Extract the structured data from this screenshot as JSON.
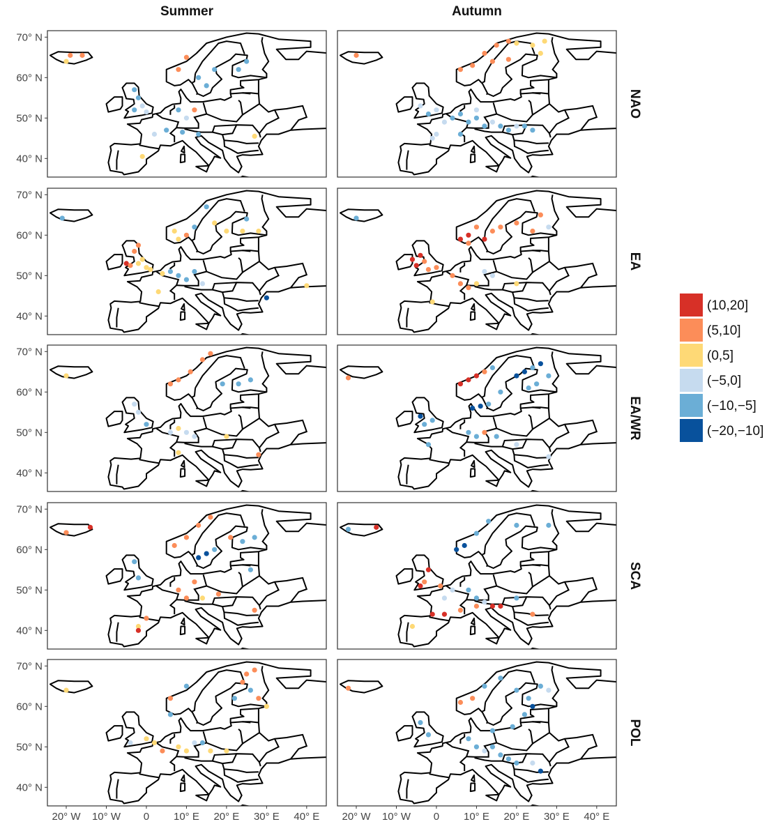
{
  "chart_data": {
    "type": "scatter",
    "columns": [
      "Summer",
      "Autumn"
    ],
    "rows": [
      "NAO",
      "EA",
      "EA/WR",
      "SCA",
      "POL"
    ],
    "xlim": [
      -24.7,
      44.9
    ],
    "xticks": [
      {
        "value": -20,
        "label": "20° W"
      },
      {
        "value": -10,
        "label": "10° W"
      },
      0,
      {
        "value": 10,
        "label": "10° E"
      },
      {
        "value": 20,
        "label": "20° E"
      },
      {
        "value": 30,
        "label": "30° E"
      },
      {
        "value": 40,
        "label": "40° E"
      }
    ],
    "ylim": [
      35.4,
      71.6
    ],
    "yticks": [
      {
        "value": 40,
        "label": "40° N"
      },
      {
        "value": 50,
        "label": "50° N"
      },
      {
        "value": 60,
        "label": "60° N"
      },
      {
        "value": 70,
        "label": "70° N"
      }
    ],
    "legend": {
      "labels": [
        "(10,20]",
        "(5,10]",
        "(0,5]",
        "(−5,0]",
        "(−10,−5]",
        "(−20,−10]"
      ],
      "colors": [
        "#d73027",
        "#fc8d59",
        "#fed976",
        "#c6dbef",
        "#6baed6",
        "#08519c"
      ]
    },
    "panels": [
      {
        "x": [
          -20,
          -19,
          -16,
          -3,
          -2,
          -1,
          -3,
          0,
          8,
          10,
          13,
          15,
          17,
          23,
          25,
          8,
          10,
          12,
          2,
          5,
          9,
          13,
          -1,
          27
        ],
        "y": [
          64,
          65.5,
          65.5,
          57,
          55,
          53,
          52,
          51.5,
          62,
          65,
          60,
          58,
          62,
          62,
          64,
          52,
          50,
          52,
          46,
          47,
          46.5,
          46,
          40.5,
          45.5
        ],
        "class": [
          "(0,5]",
          "(5,10]",
          "(5,10]",
          "(−10,−5]",
          "(−10,−5]",
          "(−5,0]",
          "(−10,−5]",
          "(−5,0]",
          "(5,10]",
          "(5,10]",
          "(−10,−5]",
          "(−10,−5]",
          "(−10,−5]",
          "(−10,−5]",
          "(−10,−5]",
          "(−10,−5]",
          "(−5,0]",
          "(5,10]",
          "(−5,0]",
          "(−10,−5]",
          "(−10,−5]",
          "(−10,−5]",
          "(0,5]",
          "(0,5]"
        ]
      },
      {
        "x": [
          -20,
          6,
          9,
          12,
          15,
          18,
          20,
          24,
          27,
          26,
          14,
          18,
          -4,
          -2,
          0,
          2,
          4,
          6,
          8,
          10,
          12,
          14,
          16,
          18,
          20,
          22,
          24,
          10,
          6,
          0,
          -1
        ],
        "y": [
          65.5,
          62,
          63,
          66,
          68,
          69,
          68.5,
          68,
          69,
          66,
          64,
          64.5,
          53,
          51,
          52,
          49,
          50,
          51,
          49,
          50,
          48,
          49,
          48,
          47,
          48,
          48,
          47,
          52,
          46,
          46,
          45
        ],
        "class": [
          "(5,10]",
          "(5,10]",
          "(5,10]",
          "(5,10]",
          "(5,10]",
          "(5,10]",
          "(0,5]",
          "(0,5]",
          "(0,5]",
          "(0,5]",
          "(5,10]",
          "(5,10]",
          "(−5,0]",
          "(−10,−5]",
          "(−5,0]",
          "(−5,0]",
          "(−10,−5]",
          "(−10,−5]",
          "(−10,−5]",
          "(−10,−5]",
          "(−10,−5]",
          "(−5,0]",
          "(−10,−5]",
          "(−10,−5]",
          "(−5,0]",
          "(−10,−5]",
          "(−10,−5]",
          "(−5,0]",
          "(−10,−5]",
          "(−5,0]",
          "(−5,0]"
        ]
      },
      {
        "x": [
          -21,
          -5,
          -4,
          -2,
          0,
          1,
          -1,
          -3,
          -2,
          7,
          8,
          10,
          12,
          15,
          17,
          20,
          24,
          28,
          25,
          4,
          6,
          8,
          10,
          12,
          14,
          3,
          40,
          30
        ],
        "y": [
          64.2,
          53,
          52.5,
          53,
          52,
          51.5,
          54,
          56,
          57.5,
          61,
          59,
          60,
          62,
          67,
          63,
          61,
          61,
          61,
          64,
          50.5,
          51,
          50,
          49,
          51,
          48,
          46,
          47.5,
          44.5
        ],
        "class": [
          "(−10,−5]",
          "(10,20]",
          "(5,10]",
          "(0,5]",
          "(0,5]",
          "(0,5]",
          "(0,5]",
          "(5,10]",
          "(5,10]",
          "(0,5]",
          "(0,5]",
          "(5,10]",
          "(−10,−5]",
          "(−10,−5]",
          "(0,5]",
          "(0,5]",
          "(0,5]",
          "(0,5]",
          "(−10,−5]",
          "(0,5]",
          "(−10,−5]",
          "(−10,−5]",
          "(−10,−5]",
          "(−10,−5]",
          "(−5,0]",
          "(0,5]",
          "(0,5]",
          "(−20,−10]"
        ]
      },
      {
        "x": [
          -20,
          -4,
          -5,
          -3,
          -2,
          0,
          -6,
          6,
          8,
          10,
          12,
          14,
          8,
          16,
          20,
          24,
          26,
          28,
          4,
          6,
          8,
          10,
          12,
          -1,
          14,
          20
        ],
        "y": [
          64.2,
          55,
          52.5,
          53.5,
          51.5,
          52,
          54,
          59,
          60,
          62,
          59,
          61,
          58,
          62,
          63,
          61,
          65,
          62,
          50,
          48,
          47,
          48,
          51,
          43.5,
          50,
          48
        ],
        "class": [
          "(−10,−5]",
          "(10,20]",
          "(10,20]",
          "(5,10]",
          "(5,10]",
          "(5,10]",
          "(10,20]",
          "(10,20]",
          "(10,20]",
          "(5,10]",
          "(10,20]",
          "(5,10]",
          "(5,10]",
          "(5,10]",
          "(5,10]",
          "(5,10]",
          "(5,10]",
          "(−5,0]",
          "(5,10]",
          "(5,10]",
          "(5,10]",
          "(0,5]",
          "(−5,0]",
          "(0,5]",
          "(−5,0]",
          "(0,5]"
        ]
      },
      {
        "x": [
          -20,
          6,
          8,
          11,
          14,
          16,
          19,
          23,
          26,
          -3,
          -2,
          0,
          6,
          8,
          10,
          12,
          8,
          20,
          28
        ],
        "y": [
          64,
          62,
          63,
          65,
          68,
          69.5,
          62,
          62,
          63,
          57,
          55,
          52,
          50,
          51,
          50,
          49,
          45,
          49,
          44.5
        ],
        "class": [
          "(0,5]",
          "(5,10]",
          "(5,10]",
          "(5,10]",
          "(5,10]",
          "(5,10]",
          "(−10,−5]",
          "(−10,−5]",
          "(−10,−5]",
          "(−5,0]",
          "(−5,0]",
          "(−10,−5]",
          "(−5,0]",
          "(0,5]",
          "(−5,0]",
          "(−5,0]",
          "(0,5]",
          "(0,5]",
          "(5,10]"
        ]
      },
      {
        "x": [
          -22,
          6,
          8,
          10,
          12,
          14,
          20,
          22,
          24,
          26,
          28,
          25,
          23,
          16,
          9,
          11,
          13,
          -4,
          -3,
          -1,
          8,
          10,
          12,
          15,
          20,
          28,
          -2
        ],
        "y": [
          63.5,
          62,
          63,
          64,
          65,
          66,
          64,
          65,
          66,
          67,
          64,
          62,
          61,
          60,
          56,
          56.5,
          57,
          54,
          52,
          53,
          50,
          49,
          50,
          49,
          47,
          44,
          47
        ],
        "class": [
          "(5,10]",
          "(10,20]",
          "(10,20]",
          "(10,20]",
          "(5,10]",
          "(−10,−5]",
          "(−20,−10]",
          "(−20,−10]",
          "(−10,−5]",
          "(−20,−10]",
          "(−10,−5]",
          "(−10,−5]",
          "(−10,−5]",
          "(−10,−5]",
          "(−20,−10]",
          "(−20,−10]",
          "(−10,−5]",
          "(−20,−10]",
          "(−10,−5]",
          "(−10,−5]",
          "(−10,−5]",
          "(−10,−5]",
          "(5,10]",
          "(−10,−5]",
          "(−5,0]",
          "(−5,0]",
          "(−10,−5]"
        ]
      },
      {
        "x": [
          -20,
          -14,
          7,
          10,
          13,
          16,
          21,
          13,
          15,
          17,
          24,
          27,
          -3,
          -2,
          8,
          10,
          12,
          14,
          18,
          -2,
          0,
          -2,
          27,
          26
        ],
        "y": [
          64.2,
          65.5,
          61,
          63,
          66,
          68,
          63,
          58,
          59,
          60,
          62,
          63,
          57,
          53,
          50,
          48,
          52,
          48,
          49,
          41,
          43,
          40,
          45,
          55
        ],
        "class": [
          "(5,10]",
          "(10,20]",
          "(5,10]",
          "(5,10]",
          "(5,10]",
          "(5,10]",
          "(5,10]",
          "(−20,−10]",
          "(−20,−10]",
          "(−10,−5]",
          "(−10,−5]",
          "(−10,−5]",
          "(−10,−5]",
          "(−10,−5]",
          "(5,10]",
          "(5,10]",
          "(5,10]",
          "(0,5]",
          "(5,10]",
          "(0,5]",
          "(5,10]",
          "(10,20]",
          "(5,10]",
          "(−10,−5]"
        ]
      },
      {
        "x": [
          -22,
          -15,
          5,
          7,
          10,
          13,
          20,
          28,
          -2,
          -3,
          -4,
          1,
          2,
          4,
          8,
          10,
          -1,
          2,
          6,
          10,
          14,
          16,
          12,
          20,
          24,
          -6
        ],
        "y": [
          65,
          65.5,
          60,
          61,
          64,
          67,
          66,
          66,
          55,
          52,
          51,
          51,
          48,
          50,
          50,
          48,
          44,
          44,
          45,
          46,
          46,
          46,
          47,
          48,
          44,
          41
        ],
        "class": [
          "(−10,−5]",
          "(10,20]",
          "(−20,−10]",
          "(−20,−10]",
          "(−10,−5]",
          "(−10,−5]",
          "(−10,−5]",
          "(−10,−5]",
          "(10,20]",
          "(5,10]",
          "(10,20]",
          "(5,10]",
          "(−5,0]",
          "(−5,0]",
          "(−10,−5]",
          "(−10,−5]",
          "(10,20]",
          "(10,20]",
          "(5,10]",
          "(5,10]",
          "(10,20]",
          "(10,20]",
          "(−5,0]",
          "(−10,−5]",
          "(5,10]",
          "(0,5]"
        ]
      },
      {
        "x": [
          -20,
          6,
          10,
          25,
          27,
          24,
          28,
          30,
          26,
          22,
          0,
          2,
          4,
          8,
          10,
          12,
          14,
          16,
          20,
          -4,
          6
        ],
        "y": [
          64,
          62,
          65,
          68,
          69,
          66,
          62,
          60,
          64,
          62,
          52,
          51,
          49,
          50,
          49,
          51,
          51,
          49,
          49,
          51,
          58
        ],
        "class": [
          "(0,5]",
          "(5,10]",
          "(−10,−5]",
          "(5,10]",
          "(5,10]",
          "(5,10]",
          "(5,10]",
          "(0,5]",
          "(−10,−5]",
          "(−10,−5]",
          "(0,5]",
          "(0,5]",
          "(5,10]",
          "(0,5]",
          "(0,5]",
          "(−5,0]",
          "(−10,−5]",
          "(0,5]",
          "(0,5]",
          "(−5,0]",
          "(−10,−5]"
        ]
      },
      {
        "x": [
          -22,
          6,
          9,
          12,
          16,
          20,
          23,
          26,
          28,
          24,
          -4,
          -2,
          8,
          10,
          12,
          14,
          16,
          18,
          20,
          24,
          26,
          14,
          19,
          22
        ],
        "y": [
          64.5,
          61,
          62,
          65,
          67,
          64,
          62,
          65,
          64,
          60,
          56,
          53,
          52,
          50,
          49,
          50,
          48,
          47,
          46,
          46,
          44,
          54,
          55,
          58
        ],
        "class": [
          "(5,10]",
          "(5,10]",
          "(5,10]",
          "(−10,−5]",
          "(−10,−5]",
          "(−10,−5]",
          "(−10,−5]",
          "(−10,−5]",
          "(−5,0]",
          "(−20,−10]",
          "(−10,−5]",
          "(−10,−5]",
          "(−10,−5]",
          "(−10,−5]",
          "(−5,0]",
          "(−10,−5]",
          "(−10,−5]",
          "(−10,−5]",
          "(−10,−5]",
          "(−5,0]",
          "(−20,−10]",
          "(−10,−5]",
          "(−10,−5]",
          "(−10,−5]"
        ]
      }
    ]
  }
}
